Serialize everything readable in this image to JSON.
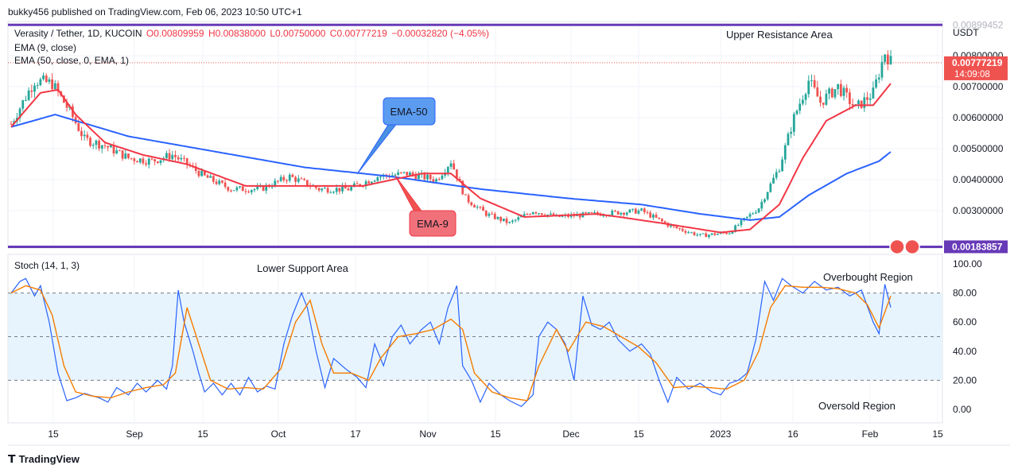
{
  "header": {
    "publisher": "bukky456 published on TradingView.com, Feb 06, 2023 10:50 UTC+1"
  },
  "legend": {
    "symbol": "Verasity / Tether, 1D, KUCOIN",
    "o": "O0.00809959",
    "h": "H0.00838000",
    "l": "L0.00750000",
    "c": "C0.00777219",
    "chg": "−0.00032820 (−4.05%)",
    "ema9": "EMA (9, close)",
    "ema50": "EMA (50, close, 0, EMA, 1)",
    "stoch": "Stoch (14, 1, 3)"
  },
  "annotations": {
    "upper": "Upper Resistance Area",
    "lower": "Lower Support Area",
    "overbought": "Overbought Region",
    "oversold": "Oversold Region",
    "ema50_callout": "EMA-50",
    "ema9_callout": "EMA-9"
  },
  "price_axis": {
    "currency": "USDT",
    "ticks": [
      "0.00800000",
      "0.00700000",
      "0.00600000",
      "0.00500000",
      "0.00400000",
      "0.00300000"
    ],
    "last_price": "0.00777219",
    "countdown": "14:09:08",
    "support_label": "0.00183857",
    "resistance_label": "0.00899452"
  },
  "stoch_axis": {
    "ticks": [
      "100.00",
      "80.00",
      "60.00",
      "40.00",
      "20.00",
      "0.00"
    ]
  },
  "time_axis": {
    "ticks": [
      "15",
      "Sep",
      "15",
      "Oct",
      "17",
      "Nov",
      "15",
      "Dec",
      "15",
      "2023",
      "16",
      "Feb",
      "15"
    ]
  },
  "footer": {
    "brand": "TradingView"
  },
  "colors": {
    "up": "#26a69a",
    "down": "#ef5350",
    "ema9": "#f23645",
    "ema50": "#2962ff",
    "level": "#673ab7",
    "stoch_k": "#2962ff",
    "stoch_d": "#f57c00",
    "band": "#e3f2fd"
  },
  "chart_data": {
    "type": "candlestick",
    "resistance": 0.00899,
    "support": 0.00184,
    "ylim": [
      0.0018,
      0.0091
    ],
    "stoch_ylim": [
      0,
      100
    ],
    "stoch_levels": [
      80,
      50,
      20
    ],
    "anchors": {
      "close": [
        [
          0,
          0.0058
        ],
        [
          8,
          0.0072
        ],
        [
          14,
          0.0071
        ],
        [
          20,
          0.0062
        ],
        [
          25,
          0.0053
        ],
        [
          32,
          0.0051
        ],
        [
          40,
          0.0047
        ],
        [
          48,
          0.0046
        ],
        [
          55,
          0.0048
        ],
        [
          60,
          0.0045
        ],
        [
          66,
          0.0041
        ],
        [
          75,
          0.0037
        ],
        [
          85,
          0.0037
        ],
        [
          95,
          0.0041
        ],
        [
          105,
          0.0037
        ],
        [
          115,
          0.0037
        ],
        [
          125,
          0.0041
        ],
        [
          135,
          0.0042
        ],
        [
          145,
          0.004
        ],
        [
          150,
          0.0046
        ],
        [
          155,
          0.0034
        ],
        [
          162,
          0.0029
        ],
        [
          170,
          0.0026
        ],
        [
          178,
          0.003
        ],
        [
          186,
          0.0028
        ],
        [
          200,
          0.0029
        ],
        [
          215,
          0.003
        ],
        [
          225,
          0.0025
        ],
        [
          235,
          0.0022
        ],
        [
          245,
          0.0023
        ],
        [
          255,
          0.0031
        ],
        [
          262,
          0.0044
        ],
        [
          267,
          0.006
        ],
        [
          272,
          0.0072
        ],
        [
          276,
          0.0065
        ],
        [
          282,
          0.007
        ],
        [
          288,
          0.0063
        ],
        [
          294,
          0.0068
        ],
        [
          298,
          0.0081
        ],
        [
          300,
          0.0078
        ]
      ],
      "ema9": [
        [
          0,
          0.0057
        ],
        [
          10,
          0.0068
        ],
        [
          16,
          0.0069
        ],
        [
          22,
          0.0061
        ],
        [
          32,
          0.0052
        ],
        [
          45,
          0.0048
        ],
        [
          60,
          0.0045
        ],
        [
          80,
          0.0038
        ],
        [
          100,
          0.0038
        ],
        [
          120,
          0.0038
        ],
        [
          140,
          0.0042
        ],
        [
          150,
          0.0042
        ],
        [
          160,
          0.0034
        ],
        [
          175,
          0.0028
        ],
        [
          200,
          0.0029
        ],
        [
          222,
          0.0026
        ],
        [
          242,
          0.0023
        ],
        [
          252,
          0.0024
        ],
        [
          262,
          0.0032
        ],
        [
          270,
          0.0047
        ],
        [
          278,
          0.0059
        ],
        [
          288,
          0.0064
        ],
        [
          294,
          0.0064
        ],
        [
          300,
          0.0071
        ]
      ],
      "ema50": [
        [
          0,
          0.0057
        ],
        [
          15,
          0.0061
        ],
        [
          40,
          0.0054
        ],
        [
          70,
          0.0049
        ],
        [
          100,
          0.0044
        ],
        [
          130,
          0.0041
        ],
        [
          160,
          0.0037
        ],
        [
          190,
          0.0034
        ],
        [
          215,
          0.0032
        ],
        [
          235,
          0.0029
        ],
        [
          252,
          0.0027
        ],
        [
          262,
          0.0028
        ],
        [
          272,
          0.0035
        ],
        [
          285,
          0.0042
        ],
        [
          296,
          0.0046
        ],
        [
          300,
          0.0049
        ]
      ],
      "stoch_k": [
        [
          0,
          80
        ],
        [
          3,
          88
        ],
        [
          5,
          90
        ],
        [
          8,
          78
        ],
        [
          10,
          85
        ],
        [
          13,
          60
        ],
        [
          16,
          25
        ],
        [
          19,
          6
        ],
        [
          22,
          8
        ],
        [
          25,
          11
        ],
        [
          30,
          8
        ],
        [
          33,
          5
        ],
        [
          36,
          15
        ],
        [
          40,
          10
        ],
        [
          43,
          18
        ],
        [
          46,
          12
        ],
        [
          50,
          20
        ],
        [
          53,
          14
        ],
        [
          55,
          30
        ],
        [
          57,
          82
        ],
        [
          59,
          60
        ],
        [
          62,
          40
        ],
        [
          64,
          25
        ],
        [
          66,
          12
        ],
        [
          69,
          18
        ],
        [
          72,
          10
        ],
        [
          75,
          18
        ],
        [
          78,
          10
        ],
        [
          81,
          22
        ],
        [
          84,
          12
        ],
        [
          87,
          16
        ],
        [
          90,
          14
        ],
        [
          93,
          45
        ],
        [
          96,
          65
        ],
        [
          99,
          80
        ],
        [
          101,
          70
        ],
        [
          104,
          40
        ],
        [
          107,
          15
        ],
        [
          110,
          35
        ],
        [
          114,
          28
        ],
        [
          118,
          22
        ],
        [
          121,
          15
        ],
        [
          124,
          45
        ],
        [
          127,
          30
        ],
        [
          130,
          50
        ],
        [
          133,
          58
        ],
        [
          136,
          45
        ],
        [
          140,
          55
        ],
        [
          143,
          60
        ],
        [
          146,
          45
        ],
        [
          149,
          70
        ],
        [
          152,
          85
        ],
        [
          154,
          30
        ],
        [
          157,
          20
        ],
        [
          160,
          5
        ],
        [
          163,
          18
        ],
        [
          167,
          10
        ],
        [
          170,
          6
        ],
        [
          174,
          2
        ],
        [
          178,
          10
        ],
        [
          180,
          50
        ],
        [
          183,
          60
        ],
        [
          186,
          55
        ],
        [
          189,
          45
        ],
        [
          192,
          20
        ],
        [
          195,
          78
        ],
        [
          198,
          58
        ],
        [
          201,
          55
        ],
        [
          204,
          60
        ],
        [
          207,
          48
        ],
        [
          211,
          40
        ],
        [
          215,
          45
        ],
        [
          218,
          38
        ],
        [
          221,
          20
        ],
        [
          224,
          5
        ],
        [
          227,
          22
        ],
        [
          231,
          14
        ],
        [
          235,
          18
        ],
        [
          239,
          12
        ],
        [
          242,
          10
        ],
        [
          245,
          18
        ],
        [
          248,
          20
        ],
        [
          251,
          25
        ],
        [
          254,
          48
        ],
        [
          257,
          88
        ],
        [
          260,
          75
        ],
        [
          263,
          90
        ],
        [
          266,
          85
        ],
        [
          270,
          80
        ],
        [
          274,
          88
        ],
        [
          278,
          82
        ],
        [
          282,
          84
        ],
        [
          286,
          78
        ],
        [
          290,
          82
        ],
        [
          294,
          60
        ],
        [
          296,
          52
        ],
        [
          298,
          86
        ],
        [
          300,
          70
        ]
      ],
      "stoch_d": [
        [
          0,
          80
        ],
        [
          5,
          85
        ],
        [
          10,
          82
        ],
        [
          14,
          65
        ],
        [
          18,
          30
        ],
        [
          22,
          12
        ],
        [
          28,
          9
        ],
        [
          34,
          8
        ],
        [
          40,
          12
        ],
        [
          46,
          15
        ],
        [
          52,
          17
        ],
        [
          56,
          25
        ],
        [
          60,
          70
        ],
        [
          64,
          45
        ],
        [
          68,
          20
        ],
        [
          74,
          14
        ],
        [
          80,
          15
        ],
        [
          86,
          14
        ],
        [
          92,
          28
        ],
        [
          97,
          60
        ],
        [
          102,
          75
        ],
        [
          106,
          45
        ],
        [
          110,
          25
        ],
        [
          116,
          25
        ],
        [
          122,
          20
        ],
        [
          126,
          35
        ],
        [
          132,
          50
        ],
        [
          138,
          52
        ],
        [
          144,
          55
        ],
        [
          150,
          62
        ],
        [
          154,
          55
        ],
        [
          158,
          25
        ],
        [
          164,
          12
        ],
        [
          170,
          8
        ],
        [
          176,
          6
        ],
        [
          180,
          30
        ],
        [
          186,
          55
        ],
        [
          190,
          40
        ],
        [
          196,
          60
        ],
        [
          202,
          57
        ],
        [
          208,
          50
        ],
        [
          214,
          43
        ],
        [
          220,
          32
        ],
        [
          226,
          15
        ],
        [
          232,
          16
        ],
        [
          238,
          15
        ],
        [
          244,
          14
        ],
        [
          250,
          20
        ],
        [
          255,
          40
        ],
        [
          259,
          70
        ],
        [
          264,
          85
        ],
        [
          270,
          84
        ],
        [
          276,
          84
        ],
        [
          282,
          83
        ],
        [
          288,
          80
        ],
        [
          292,
          72
        ],
        [
          296,
          56
        ],
        [
          300,
          78
        ]
      ]
    }
  }
}
